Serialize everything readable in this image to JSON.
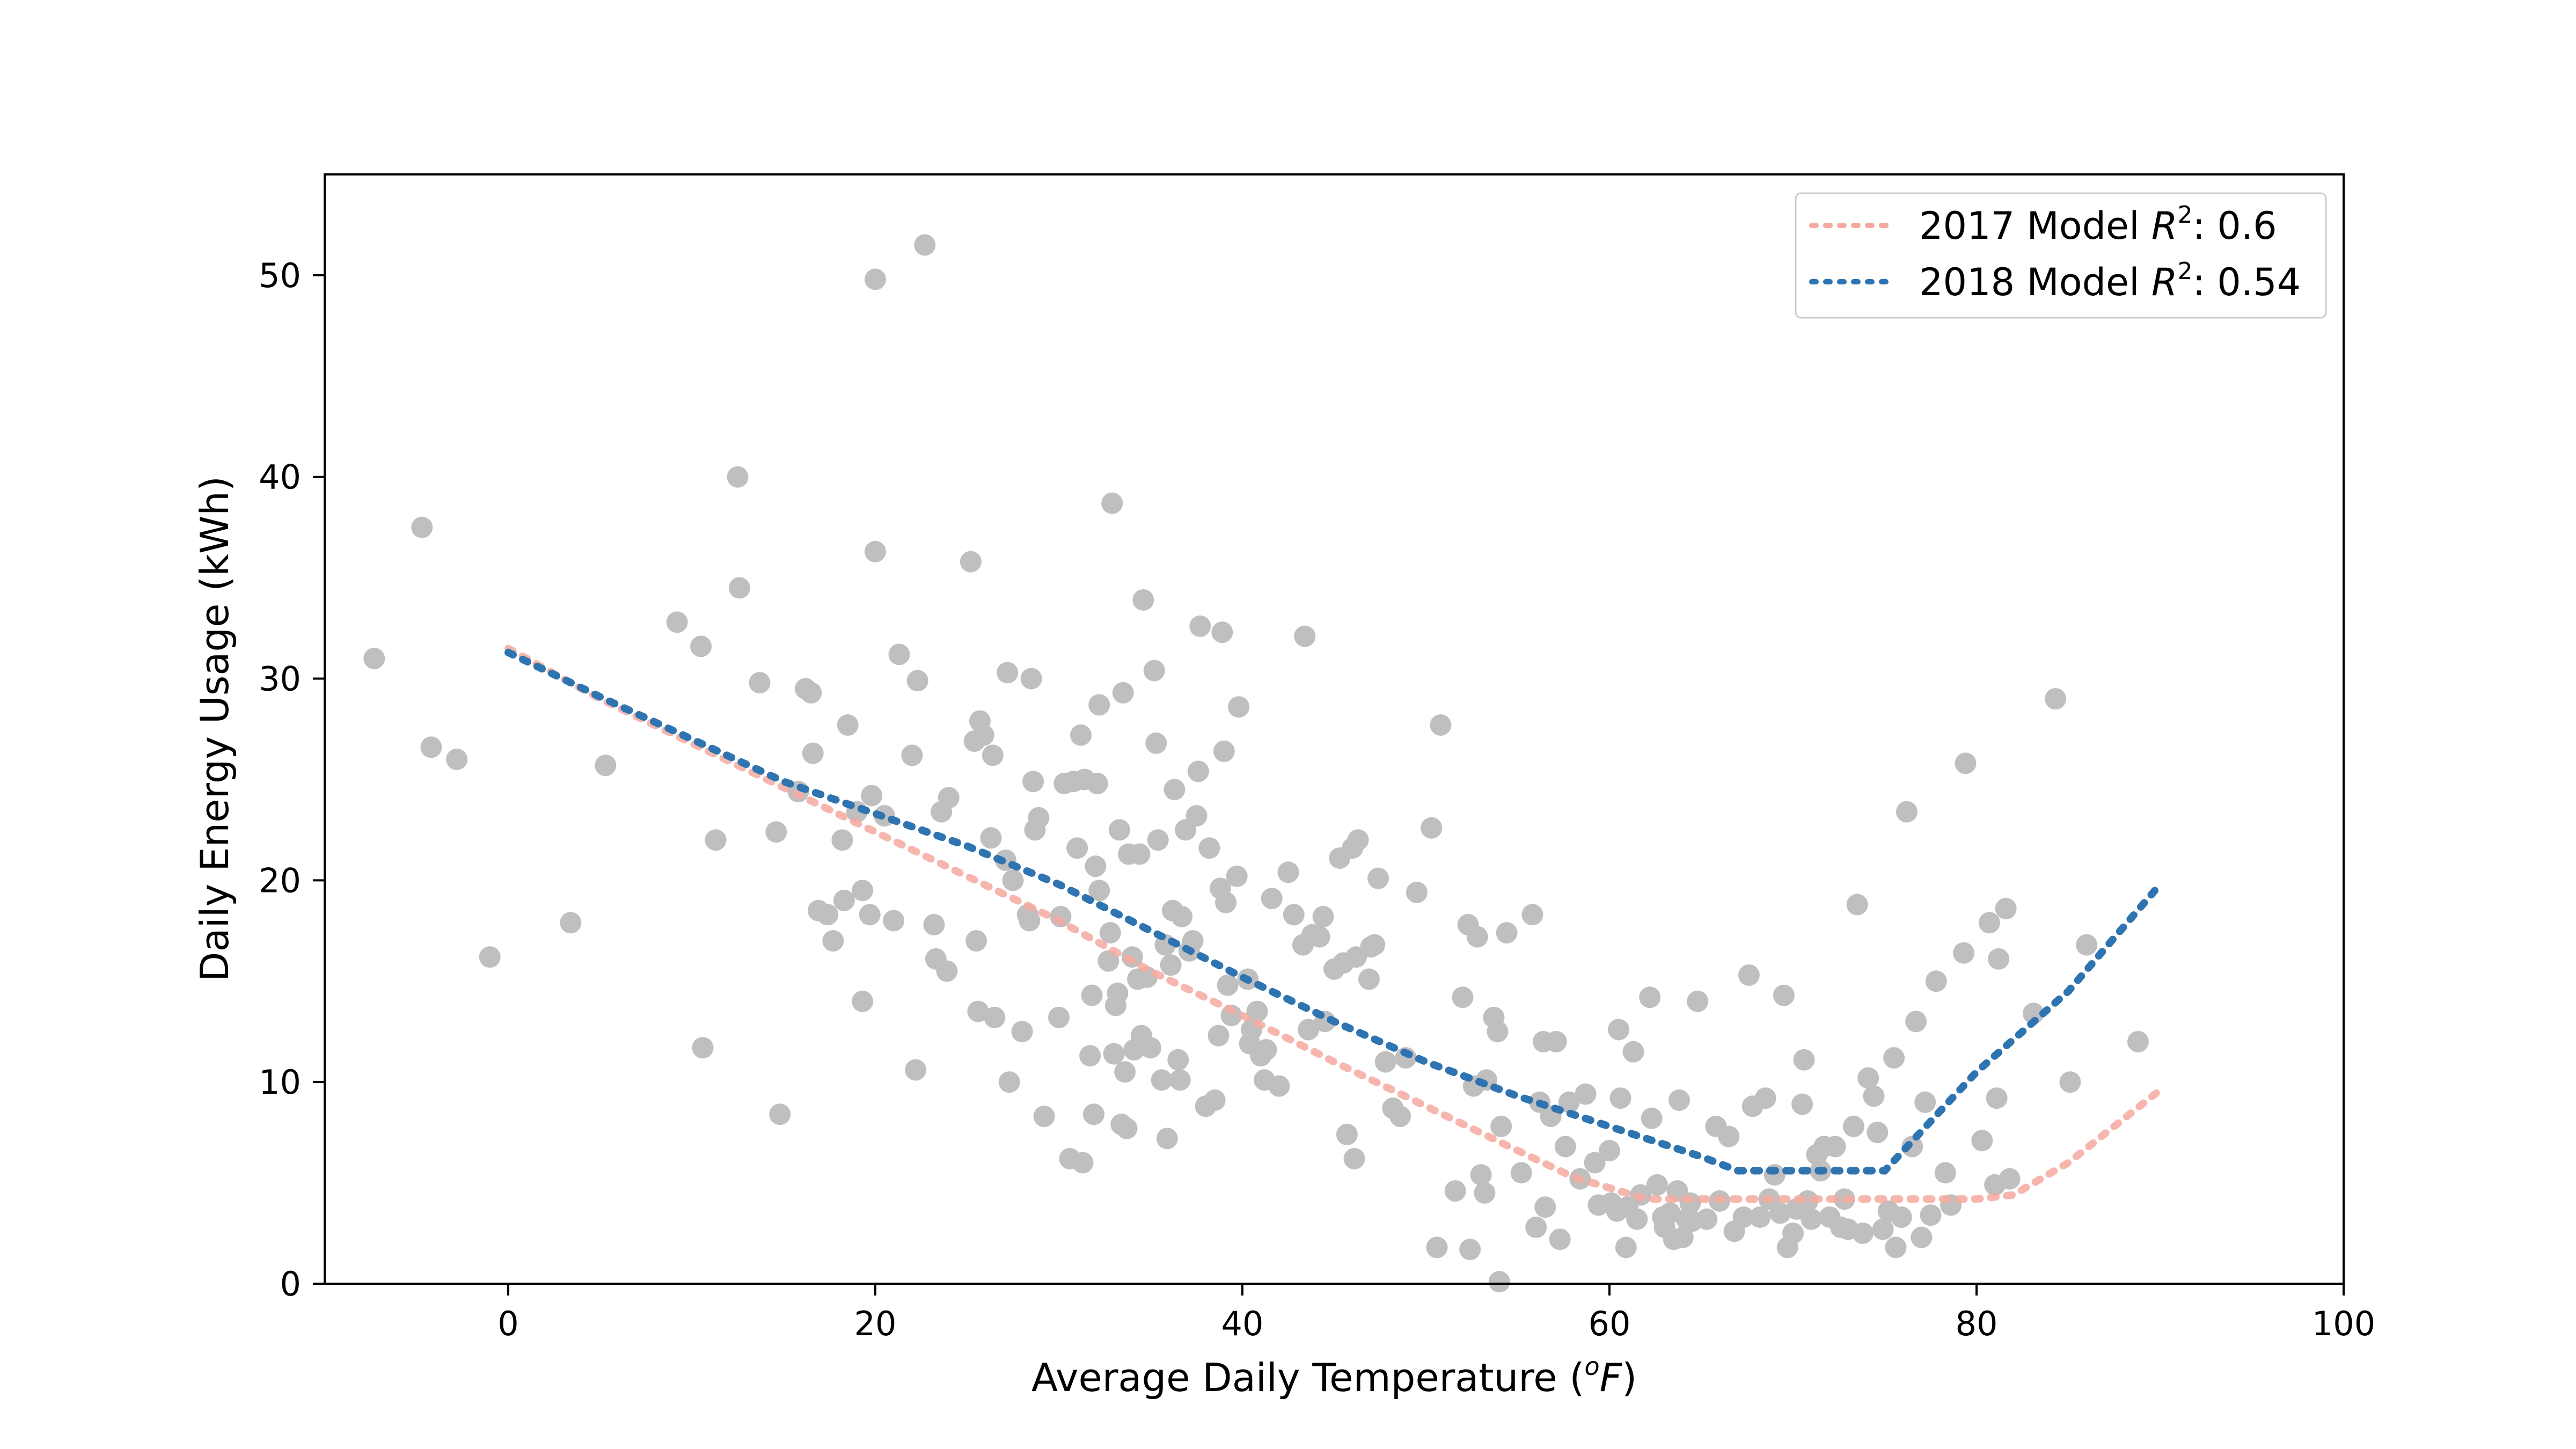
{
  "chart_data": {
    "type": "scatter",
    "xlabel": "Average Daily Temperature (",
    "xlabel_sup": "o",
    "xlabel_unit": "F",
    "xlabel_close": ")",
    "ylabel": "Daily Energy Usage (kWh)",
    "xlim": [
      -10,
      100
    ],
    "ylim": [
      0,
      55
    ],
    "x_ticks": [
      0,
      20,
      40,
      60,
      80,
      100
    ],
    "y_ticks": [
      0,
      10,
      20,
      30,
      40,
      50
    ],
    "grid": false,
    "legend_position": "top-right",
    "colors": {
      "points": "#bfbfbf",
      "model_2017": "#f4a9a0",
      "model_2018": "#2e74b0"
    },
    "legend": [
      {
        "key": "model_2017",
        "prefix": "2017 Model ",
        "var": "R",
        "sup": "2",
        "suffix": ": 0.6"
      },
      {
        "key": "model_2018",
        "prefix": "2018 Model ",
        "var": "R",
        "sup": "2",
        "suffix": ": 0.54"
      }
    ],
    "series": [
      {
        "name": "2017 Model R2: 0.6",
        "style": "dotted",
        "points": [
          [
            0,
            31.5
          ],
          [
            5,
            29
          ],
          [
            10,
            26.8
          ],
          [
            15,
            24.6
          ],
          [
            20,
            22.4
          ],
          [
            25,
            20.2
          ],
          [
            30,
            18
          ],
          [
            35,
            15.5
          ],
          [
            40,
            13.3
          ],
          [
            45,
            11
          ],
          [
            50,
            8.8
          ],
          [
            55,
            6.6
          ],
          [
            58,
            5.3
          ],
          [
            62,
            4.2
          ],
          [
            70,
            4.2
          ],
          [
            80,
            4.2
          ],
          [
            82,
            4.4
          ],
          [
            85,
            6
          ],
          [
            90,
            9.6
          ]
        ]
      },
      {
        "name": "2018 Model R2: 0.54",
        "style": "dotted",
        "points": [
          [
            0,
            31.3
          ],
          [
            5,
            29.1
          ],
          [
            10,
            27
          ],
          [
            15,
            24.9
          ],
          [
            20,
            23.3
          ],
          [
            25,
            21.7
          ],
          [
            30,
            19.8
          ],
          [
            35,
            17.5
          ],
          [
            40,
            15.2
          ],
          [
            45,
            13
          ],
          [
            50,
            11
          ],
          [
            55,
            9.3
          ],
          [
            60,
            7.8
          ],
          [
            65,
            6.3
          ],
          [
            67,
            5.6
          ],
          [
            70,
            5.6
          ],
          [
            75,
            5.6
          ],
          [
            80,
            10.5
          ],
          [
            85,
            14.5
          ],
          [
            90,
            19.8
          ]
        ]
      }
    ],
    "scatter_points": [
      [
        -7.3,
        31
      ],
      [
        -4.7,
        37.5
      ],
      [
        -4.2,
        26.6
      ],
      [
        -2.8,
        26
      ],
      [
        -1,
        16.2
      ],
      [
        3.4,
        17.9
      ],
      [
        5.3,
        25.7
      ],
      [
        9.2,
        32.8
      ],
      [
        10.5,
        31.6
      ],
      [
        10.6,
        11.7
      ],
      [
        11.3,
        22
      ],
      [
        12.5,
        40
      ],
      [
        12.6,
        34.5
      ],
      [
        13.7,
        29.8
      ],
      [
        14.6,
        22.4
      ],
      [
        14.8,
        8.4
      ],
      [
        15.8,
        24.4
      ],
      [
        16.2,
        29.5
      ],
      [
        16.5,
        29.3
      ],
      [
        16.6,
        26.3
      ],
      [
        16.9,
        18.5
      ],
      [
        17.4,
        18.3
      ],
      [
        17.7,
        17
      ],
      [
        18.2,
        22
      ],
      [
        18.3,
        19
      ],
      [
        18.5,
        27.7
      ],
      [
        19,
        23.4
      ],
      [
        19.3,
        19.5
      ],
      [
        19.3,
        14
      ],
      [
        19.7,
        18.3
      ],
      [
        19.8,
        24.2
      ],
      [
        20,
        36.3
      ],
      [
        20,
        49.8
      ],
      [
        20.5,
        23.2
      ],
      [
        21,
        18
      ],
      [
        21.3,
        31.2
      ],
      [
        22,
        26.2
      ],
      [
        22.2,
        10.6
      ],
      [
        22.3,
        29.9
      ],
      [
        22.7,
        51.5
      ],
      [
        23.2,
        17.8
      ],
      [
        23.3,
        16.1
      ],
      [
        23.6,
        23.4
      ],
      [
        23.9,
        15.5
      ],
      [
        24,
        24.1
      ],
      [
        25.2,
        35.8
      ],
      [
        25.4,
        26.9
      ],
      [
        25.5,
        17
      ],
      [
        25.6,
        13.5
      ],
      [
        25.7,
        27.9
      ],
      [
        25.9,
        27.2
      ],
      [
        26.3,
        22.1
      ],
      [
        26.4,
        26.2
      ],
      [
        26.5,
        13.2
      ],
      [
        27.1,
        21
      ],
      [
        27.2,
        30.3
      ],
      [
        27.3,
        10
      ],
      [
        27.5,
        20
      ],
      [
        28,
        12.5
      ],
      [
        28.3,
        18.3
      ],
      [
        28.4,
        18
      ],
      [
        28.5,
        30
      ],
      [
        28.6,
        24.9
      ],
      [
        28.7,
        22.5
      ],
      [
        28.9,
        23.1
      ],
      [
        29.2,
        8.3
      ],
      [
        30,
        13.2
      ],
      [
        30.1,
        18.2
      ],
      [
        30.3,
        24.8
      ],
      [
        30.6,
        6.2
      ],
      [
        30.8,
        24.9
      ],
      [
        31,
        21.6
      ],
      [
        31.2,
        27.2
      ],
      [
        31.3,
        6
      ],
      [
        31.4,
        25
      ],
      [
        31.7,
        11.3
      ],
      [
        31.8,
        14.3
      ],
      [
        31.9,
        8.4
      ],
      [
        32,
        20.7
      ],
      [
        32.1,
        24.8
      ],
      [
        32.2,
        19.5
      ],
      [
        32.2,
        28.7
      ],
      [
        32.7,
        16
      ],
      [
        32.8,
        17.4
      ],
      [
        32.9,
        38.7
      ],
      [
        33,
        11.4
      ],
      [
        33.1,
        13.8
      ],
      [
        33.2,
        14.4
      ],
      [
        33.3,
        22.5
      ],
      [
        33.4,
        7.9
      ],
      [
        33.5,
        29.3
      ],
      [
        33.6,
        10.5
      ],
      [
        33.7,
        7.7
      ],
      [
        33.8,
        21.3
      ],
      [
        34,
        16.2
      ],
      [
        34.1,
        11.6
      ],
      [
        34.3,
        15.1
      ],
      [
        34.4,
        21.3
      ],
      [
        34.5,
        12.3
      ],
      [
        34.6,
        33.9
      ],
      [
        34.8,
        15.2
      ],
      [
        35,
        11.7
      ],
      [
        35.2,
        30.4
      ],
      [
        35.3,
        26.8
      ],
      [
        35.4,
        22
      ],
      [
        35.6,
        10.1
      ],
      [
        35.8,
        16.8
      ],
      [
        35.9,
        7.2
      ],
      [
        36.1,
        15.8
      ],
      [
        36.2,
        18.5
      ],
      [
        36.3,
        24.5
      ],
      [
        36.5,
        11.1
      ],
      [
        36.6,
        10.1
      ],
      [
        36.7,
        18.2
      ],
      [
        36.9,
        22.5
      ],
      [
        37.1,
        16.5
      ],
      [
        37.3,
        17
      ],
      [
        37.5,
        23.2
      ],
      [
        37.6,
        25.4
      ],
      [
        37.7,
        32.6
      ],
      [
        38,
        8.8
      ],
      [
        38.2,
        21.6
      ],
      [
        38.5,
        9.1
      ],
      [
        38.7,
        12.3
      ],
      [
        38.8,
        19.6
      ],
      [
        38.9,
        32.3
      ],
      [
        39,
        26.4
      ],
      [
        39.1,
        18.9
      ],
      [
        39.2,
        14.8
      ],
      [
        39.4,
        13.3
      ],
      [
        39.7,
        20.2
      ],
      [
        39.8,
        28.6
      ],
      [
        40.3,
        15.1
      ],
      [
        40.4,
        11.9
      ],
      [
        40.5,
        12.6
      ],
      [
        40.8,
        13.5
      ],
      [
        41,
        11.3
      ],
      [
        41.2,
        10.1
      ],
      [
        41.3,
        11.6
      ],
      [
        41.6,
        19.1
      ],
      [
        42,
        9.8
      ],
      [
        42.5,
        20.4
      ],
      [
        42.8,
        18.3
      ],
      [
        43.3,
        16.8
      ],
      [
        43.4,
        32.1
      ],
      [
        43.6,
        12.6
      ],
      [
        43.8,
        17.3
      ],
      [
        44.2,
        17.2
      ],
      [
        44.4,
        18.2
      ],
      [
        44.5,
        13
      ],
      [
        45,
        15.6
      ],
      [
        45.3,
        21.1
      ],
      [
        45.5,
        15.9
      ],
      [
        45.7,
        7.4
      ],
      [
        46,
        21.6
      ],
      [
        46.1,
        6.2
      ],
      [
        46.2,
        16.2
      ],
      [
        46.3,
        22
      ],
      [
        46.9,
        15.1
      ],
      [
        47,
        16.7
      ],
      [
        47.2,
        16.8
      ],
      [
        47.4,
        20.1
      ],
      [
        47.8,
        11
      ],
      [
        48.2,
        8.7
      ],
      [
        48.6,
        8.3
      ],
      [
        48.9,
        11.2
      ],
      [
        49.5,
        19.4
      ],
      [
        50.3,
        22.6
      ],
      [
        50.6,
        1.8
      ],
      [
        50.8,
        27.7
      ],
      [
        51.6,
        4.6
      ],
      [
        52,
        14.2
      ],
      [
        52.3,
        17.8
      ],
      [
        52.4,
        1.7
      ],
      [
        52.6,
        9.8
      ],
      [
        52.8,
        17.2
      ],
      [
        53,
        5.4
      ],
      [
        53.2,
        4.5
      ],
      [
        53.3,
        10.1
      ],
      [
        53.7,
        13.2
      ],
      [
        53.9,
        12.5
      ],
      [
        54,
        0.1
      ],
      [
        54.1,
        7.8
      ],
      [
        54.4,
        17.4
      ],
      [
        55.2,
        5.5
      ],
      [
        55.8,
        18.3
      ],
      [
        56,
        2.8
      ],
      [
        56.2,
        9
      ],
      [
        56.4,
        12
      ],
      [
        56.5,
        3.8
      ],
      [
        56.8,
        8.3
      ],
      [
        57.1,
        12
      ],
      [
        57.3,
        2.2
      ],
      [
        57.6,
        6.8
      ],
      [
        57.8,
        9
      ],
      [
        58.4,
        5.2
      ],
      [
        58.7,
        9.4
      ],
      [
        59.2,
        6
      ],
      [
        59.4,
        3.9
      ],
      [
        60,
        6.6
      ],
      [
        60.1,
        4
      ],
      [
        60.4,
        3.6
      ],
      [
        60.5,
        12.6
      ],
      [
        60.6,
        9.2
      ],
      [
        60.9,
        1.8
      ],
      [
        61,
        3.8
      ],
      [
        61.3,
        11.5
      ],
      [
        61.5,
        3.2
      ],
      [
        61.7,
        4.4
      ],
      [
        62.2,
        14.2
      ],
      [
        62.3,
        8.2
      ],
      [
        62.6,
        4.9
      ],
      [
        62.9,
        3.3
      ],
      [
        63,
        2.8
      ],
      [
        63.3,
        3.5
      ],
      [
        63.5,
        2.2
      ],
      [
        63.7,
        4.6
      ],
      [
        63.8,
        9.1
      ],
      [
        64,
        2.3
      ],
      [
        64.2,
        3.2
      ],
      [
        64.4,
        4
      ],
      [
        64.5,
        3.1
      ],
      [
        64.8,
        14
      ],
      [
        65.3,
        3.2
      ],
      [
        65.8,
        7.8
      ],
      [
        66,
        4.1
      ],
      [
        66.5,
        7.3
      ],
      [
        66.8,
        2.6
      ],
      [
        67.3,
        3.3
      ],
      [
        67.6,
        15.3
      ],
      [
        67.8,
        8.8
      ],
      [
        68.2,
        3.3
      ],
      [
        68.5,
        9.2
      ],
      [
        68.7,
        4.2
      ],
      [
        69,
        5.4
      ],
      [
        69.3,
        3.5
      ],
      [
        69.5,
        14.3
      ],
      [
        69.7,
        1.8
      ],
      [
        70,
        2.5
      ],
      [
        70.2,
        3.7
      ],
      [
        70.5,
        8.9
      ],
      [
        70.6,
        11.1
      ],
      [
        70.8,
        4.1
      ],
      [
        71,
        3.2
      ],
      [
        71.3,
        6.4
      ],
      [
        71.5,
        5.6
      ],
      [
        71.7,
        6.8
      ],
      [
        72,
        3.3
      ],
      [
        72.3,
        6.8
      ],
      [
        72.6,
        2.8
      ],
      [
        72.8,
        4.2
      ],
      [
        73,
        2.7
      ],
      [
        73.3,
        7.8
      ],
      [
        73.5,
        18.8
      ],
      [
        73.8,
        2.5
      ],
      [
        74.1,
        10.2
      ],
      [
        74.4,
        9.3
      ],
      [
        74.6,
        7.5
      ],
      [
        74.9,
        2.7
      ],
      [
        75.2,
        3.6
      ],
      [
        75.5,
        11.2
      ],
      [
        75.6,
        1.8
      ],
      [
        75.9,
        3.3
      ],
      [
        76.2,
        23.4
      ],
      [
        76.5,
        6.8
      ],
      [
        76.7,
        13
      ],
      [
        77,
        2.3
      ],
      [
        77.2,
        9
      ],
      [
        77.5,
        3.4
      ],
      [
        77.8,
        15
      ],
      [
        78.3,
        5.5
      ],
      [
        78.6,
        3.9
      ],
      [
        79.3,
        16.4
      ],
      [
        79.4,
        25.8
      ],
      [
        80.3,
        7.1
      ],
      [
        80.7,
        17.9
      ],
      [
        81,
        4.9
      ],
      [
        81.1,
        9.2
      ],
      [
        81.2,
        16.1
      ],
      [
        81.6,
        18.6
      ],
      [
        81.8,
        5.2
      ],
      [
        83.1,
        13.4
      ],
      [
        84.3,
        29
      ],
      [
        85.1,
        10
      ],
      [
        86,
        16.8
      ],
      [
        88.8,
        12
      ]
    ]
  }
}
